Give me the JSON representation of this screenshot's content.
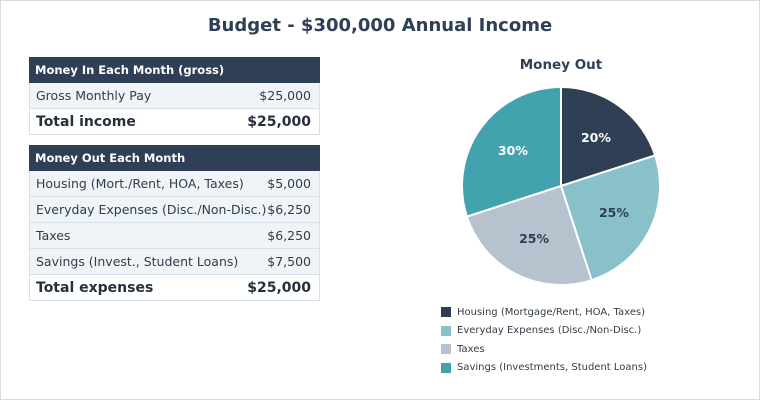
{
  "title": "Budget - $300,000 Annual Income",
  "money_in": {
    "header": "Money In Each Month (gross)",
    "rows": [
      {
        "label": "Gross Monthly Pay",
        "value": "$25,000"
      }
    ],
    "total": {
      "label": "Total income",
      "value": "$25,000"
    }
  },
  "money_out": {
    "header": "Money Out Each Month",
    "rows": [
      {
        "label": "Housing (Mort./Rent, HOA, Taxes)",
        "value": "$5,000"
      },
      {
        "label": "Everyday Expenses (Disc./Non-Disc.)",
        "value": "$6,250"
      },
      {
        "label": "Taxes",
        "value": "$6,250"
      },
      {
        "label": "Savings (Invest., Student Loans)",
        "value": "$7,500"
      }
    ],
    "total": {
      "label": "Total expenses",
      "value": "$25,000"
    }
  },
  "chart_data": {
    "type": "pie",
    "title": "Money Out",
    "categories": [
      "Housing (Mortgage/Rent, HOA, Taxes)",
      "Everyday Expenses (Disc./Non-Disc.)",
      "Taxes",
      "Savings (Investments, Student Loans)"
    ],
    "values": [
      20,
      25,
      25,
      30
    ],
    "labels": [
      "20%",
      "25%",
      "25%",
      "30%"
    ],
    "colors": [
      "#2f3f55",
      "#88c1c9",
      "#b6c2cd",
      "#42a2ae"
    ],
    "label_colors": [
      "#ffffff",
      "#2f3f55",
      "#2f3f55",
      "#ffffff"
    ],
    "legend_position": "bottom"
  }
}
